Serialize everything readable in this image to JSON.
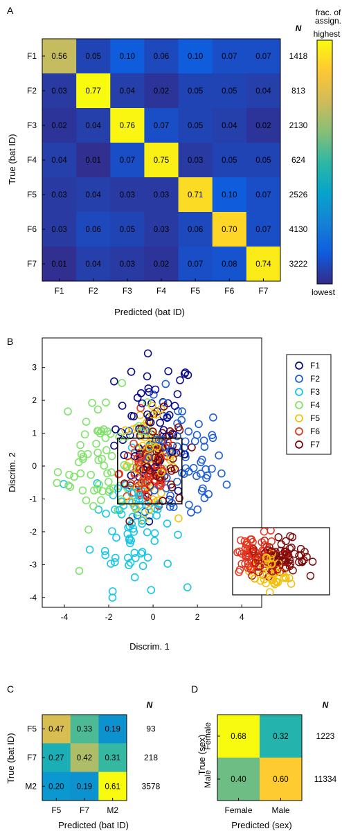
{
  "panels": {
    "A": {
      "letter": "A",
      "ylabel": "True (bat ID)",
      "xlabel": "Predicted (bat ID)",
      "n_header": "N",
      "rows": [
        "F1",
        "F2",
        "F3",
        "F4",
        "F5",
        "F6",
        "F7"
      ],
      "cols": [
        "F1",
        "F2",
        "F3",
        "F4",
        "F5",
        "F6",
        "F7"
      ],
      "matrix": [
        [
          "0.56",
          "0.05",
          "0.10",
          "0.06",
          "0.10",
          "0.07",
          "0.07"
        ],
        [
          "0.03",
          "0.77",
          "0.04",
          "0.02",
          "0.05",
          "0.05",
          "0.04"
        ],
        [
          "0.02",
          "0.04",
          "0.76",
          "0.07",
          "0.05",
          "0.04",
          "0.02"
        ],
        [
          "0.04",
          "0.01",
          "0.07",
          "0.75",
          "0.03",
          "0.05",
          "0.05"
        ],
        [
          "0.03",
          "0.04",
          "0.03",
          "0.03",
          "0.71",
          "0.10",
          "0.07"
        ],
        [
          "0.03",
          "0.06",
          "0.05",
          "0.03",
          "0.06",
          "0.70",
          "0.07"
        ],
        [
          "0.01",
          "0.04",
          "0.03",
          "0.02",
          "0.07",
          "0.08",
          "0.74"
        ]
      ],
      "n": [
        "1418",
        "813",
        "2130",
        "624",
        "2526",
        "4130",
        "3222"
      ],
      "colorbar": {
        "title_line1": "frac. of",
        "title_line2": "assign.",
        "top": "highest",
        "bottom": "lowest"
      }
    },
    "B": {
      "letter": "B",
      "xlabel": "Discrim. 1",
      "ylabel": "Discrim. 2",
      "legend": [
        "F1",
        "F2",
        "F3",
        "F4",
        "F5",
        "F6",
        "F7"
      ],
      "xticks": [
        "-4",
        "-2",
        "0",
        "2",
        "4"
      ],
      "yticks": [
        "3",
        "2",
        "1",
        "0",
        "-1",
        "-2",
        "-3",
        "-4"
      ]
    },
    "C": {
      "letter": "C",
      "ylabel": "True (bat ID)",
      "xlabel": "Predicted (bat ID)",
      "n_header": "N",
      "rows": [
        "F5",
        "F7",
        "M2"
      ],
      "cols": [
        "F5",
        "F7",
        "M2"
      ],
      "matrix": [
        [
          "0.47",
          "0.33",
          "0.19"
        ],
        [
          "0.27",
          "0.42",
          "0.31"
        ],
        [
          "0.20",
          "0.19",
          "0.61"
        ]
      ],
      "n": [
        "93",
        "218",
        "3578"
      ]
    },
    "D": {
      "letter": "D",
      "ylabel": "True (sex)",
      "xlabel": "Predicted (sex)",
      "n_header": "N",
      "rows": [
        "Female",
        "Male"
      ],
      "cols": [
        "Female",
        "Male"
      ],
      "matrix": [
        [
          "0.68",
          "0.32"
        ],
        [
          "0.40",
          "0.60"
        ]
      ],
      "n": [
        "1223",
        "11334"
      ]
    }
  },
  "chart_data": [
    {
      "type": "heatmap",
      "panel": "A",
      "xlabel": "Predicted (bat ID)",
      "ylabel": "True (bat ID)",
      "categories_x": [
        "F1",
        "F2",
        "F3",
        "F4",
        "F5",
        "F6",
        "F7"
      ],
      "categories_y": [
        "F1",
        "F2",
        "F3",
        "F4",
        "F5",
        "F6",
        "F7"
      ],
      "values": [
        [
          0.56,
          0.05,
          0.1,
          0.06,
          0.1,
          0.07,
          0.07
        ],
        [
          0.03,
          0.77,
          0.04,
          0.02,
          0.05,
          0.05,
          0.04
        ],
        [
          0.02,
          0.04,
          0.76,
          0.07,
          0.05,
          0.04,
          0.02
        ],
        [
          0.04,
          0.01,
          0.07,
          0.75,
          0.03,
          0.05,
          0.05
        ],
        [
          0.03,
          0.04,
          0.03,
          0.03,
          0.71,
          0.1,
          0.07
        ],
        [
          0.03,
          0.06,
          0.05,
          0.03,
          0.06,
          0.7,
          0.07
        ],
        [
          0.01,
          0.04,
          0.03,
          0.02,
          0.07,
          0.08,
          0.74
        ]
      ],
      "n": [
        1418,
        813,
        2130,
        624,
        2526,
        4130,
        3222
      ],
      "colormap": [
        "#352a87",
        "#0f5cdd",
        "#1481d6",
        "#06a4ca",
        "#2eb7a4",
        "#87bf77",
        "#d1bb59",
        "#fec832",
        "#f9fb0e"
      ]
    },
    {
      "type": "scatter",
      "panel": "B",
      "xlabel": "Discrim. 1",
      "ylabel": "Discrim. 2",
      "xlim": [
        -5,
        4.9
      ],
      "ylim": [
        -4.3,
        3.9
      ],
      "legend_position": "top-right",
      "inset_rect": {
        "x": [
          -1.6,
          1.3
        ],
        "y": [
          -1.15,
          0.85
        ]
      },
      "series": [
        {
          "name": "F1",
          "color": "#0b0b8a",
          "center": [
            0.1,
            1.2
          ],
          "spread": [
            0.9,
            1.1
          ],
          "n": 60
        },
        {
          "name": "F2",
          "color": "#1f5fd6",
          "center": [
            1.2,
            0.0
          ],
          "spread": [
            1.0,
            1.0
          ],
          "n": 70
        },
        {
          "name": "F3",
          "color": "#17c6e6",
          "center": [
            -0.9,
            -1.7
          ],
          "spread": [
            0.9,
            1.0
          ],
          "n": 75
        },
        {
          "name": "F4",
          "color": "#7fe36a",
          "center": [
            -2.3,
            0.2
          ],
          "spread": [
            1.0,
            1.0
          ],
          "n": 70
        },
        {
          "name": "F5",
          "color": "#f2c10f",
          "center": [
            -0.2,
            0.2
          ],
          "spread": [
            0.6,
            0.7
          ],
          "n": 55
        },
        {
          "name": "F6",
          "color": "#e6341c",
          "center": [
            -0.3,
            -0.2
          ],
          "spread": [
            0.6,
            0.6
          ],
          "n": 70
        },
        {
          "name": "F7",
          "color": "#7a0a0a",
          "center": [
            0.3,
            0.1
          ],
          "spread": [
            0.6,
            0.7
          ],
          "n": 60
        }
      ]
    },
    {
      "type": "heatmap",
      "panel": "C",
      "xlabel": "Predicted (bat ID)",
      "ylabel": "True (bat ID)",
      "categories_x": [
        "F5",
        "F7",
        "M2"
      ],
      "categories_y": [
        "F5",
        "F7",
        "M2"
      ],
      "values": [
        [
          0.47,
          0.33,
          0.19
        ],
        [
          0.27,
          0.42,
          0.31
        ],
        [
          0.2,
          0.19,
          0.61
        ]
      ],
      "n": [
        93,
        218,
        3578
      ]
    },
    {
      "type": "heatmap",
      "panel": "D",
      "xlabel": "Predicted (sex)",
      "ylabel": "True (sex)",
      "categories_x": [
        "Female",
        "Male"
      ],
      "categories_y": [
        "Female",
        "Male"
      ],
      "values": [
        [
          0.68,
          0.32
        ],
        [
          0.4,
          0.6
        ]
      ],
      "n": [
        1223,
        11334
      ]
    }
  ]
}
